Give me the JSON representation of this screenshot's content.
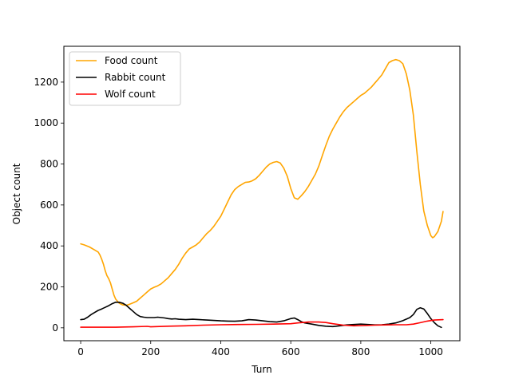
{
  "chart_data": {
    "type": "line",
    "xlabel": "Turn",
    "ylabel": "Object count",
    "xlim": [
      -48,
      1083
    ],
    "ylim": [
      -63,
      1375
    ],
    "x_ticks": [
      0,
      200,
      400,
      600,
      800,
      1000
    ],
    "y_ticks": [
      0,
      200,
      400,
      600,
      800,
      1000,
      1200
    ],
    "grid": false,
    "legend_position": "upper left",
    "series": [
      {
        "name": "Food count",
        "color": "#ffa500",
        "points": [
          [
            0,
            410
          ],
          [
            10,
            405
          ],
          [
            25,
            395
          ],
          [
            40,
            380
          ],
          [
            50,
            370
          ],
          [
            55,
            355
          ],
          [
            60,
            335
          ],
          [
            65,
            310
          ],
          [
            70,
            280
          ],
          [
            75,
            255
          ],
          [
            80,
            240
          ],
          [
            85,
            220
          ],
          [
            90,
            190
          ],
          [
            95,
            160
          ],
          [
            100,
            140
          ],
          [
            110,
            120
          ],
          [
            120,
            112
          ],
          [
            130,
            110
          ],
          [
            140,
            115
          ],
          [
            150,
            122
          ],
          [
            160,
            130
          ],
          [
            170,
            145
          ],
          [
            180,
            160
          ],
          [
            190,
            175
          ],
          [
            200,
            190
          ],
          [
            210,
            198
          ],
          [
            220,
            205
          ],
          [
            230,
            215
          ],
          [
            240,
            230
          ],
          [
            250,
            245
          ],
          [
            260,
            265
          ],
          [
            270,
            285
          ],
          [
            280,
            310
          ],
          [
            290,
            340
          ],
          [
            300,
            365
          ],
          [
            310,
            385
          ],
          [
            320,
            395
          ],
          [
            330,
            405
          ],
          [
            340,
            420
          ],
          [
            350,
            440
          ],
          [
            360,
            460
          ],
          [
            370,
            475
          ],
          [
            380,
            495
          ],
          [
            390,
            520
          ],
          [
            400,
            545
          ],
          [
            410,
            580
          ],
          [
            420,
            615
          ],
          [
            430,
            650
          ],
          [
            440,
            675
          ],
          [
            450,
            690
          ],
          [
            460,
            700
          ],
          [
            470,
            710
          ],
          [
            480,
            712
          ],
          [
            490,
            718
          ],
          [
            500,
            728
          ],
          [
            510,
            745
          ],
          [
            520,
            765
          ],
          [
            530,
            785
          ],
          [
            540,
            800
          ],
          [
            550,
            808
          ],
          [
            560,
            812
          ],
          [
            570,
            805
          ],
          [
            580,
            780
          ],
          [
            590,
            740
          ],
          [
            600,
            680
          ],
          [
            610,
            635
          ],
          [
            620,
            628
          ],
          [
            630,
            645
          ],
          [
            640,
            665
          ],
          [
            650,
            690
          ],
          [
            660,
            720
          ],
          [
            670,
            750
          ],
          [
            680,
            790
          ],
          [
            690,
            840
          ],
          [
            700,
            890
          ],
          [
            710,
            935
          ],
          [
            720,
            970
          ],
          [
            730,
            1000
          ],
          [
            740,
            1030
          ],
          [
            750,
            1055
          ],
          [
            760,
            1075
          ],
          [
            770,
            1090
          ],
          [
            780,
            1105
          ],
          [
            790,
            1120
          ],
          [
            800,
            1135
          ],
          [
            810,
            1145
          ],
          [
            820,
            1160
          ],
          [
            830,
            1175
          ],
          [
            840,
            1195
          ],
          [
            850,
            1215
          ],
          [
            860,
            1235
          ],
          [
            870,
            1265
          ],
          [
            880,
            1295
          ],
          [
            890,
            1305
          ],
          [
            900,
            1310
          ],
          [
            910,
            1305
          ],
          [
            920,
            1290
          ],
          [
            930,
            1240
          ],
          [
            940,
            1160
          ],
          [
            950,
            1040
          ],
          [
            960,
            860
          ],
          [
            970,
            700
          ],
          [
            980,
            570
          ],
          [
            990,
            500
          ],
          [
            1000,
            450
          ],
          [
            1005,
            440
          ],
          [
            1010,
            445
          ],
          [
            1020,
            470
          ],
          [
            1030,
            520
          ],
          [
            1035,
            568
          ]
        ]
      },
      {
        "name": "Rabbit count",
        "color": "#000000",
        "points": [
          [
            0,
            40
          ],
          [
            10,
            42
          ],
          [
            20,
            52
          ],
          [
            30,
            65
          ],
          [
            40,
            75
          ],
          [
            50,
            85
          ],
          [
            60,
            92
          ],
          [
            70,
            100
          ],
          [
            80,
            108
          ],
          [
            90,
            118
          ],
          [
            100,
            125
          ],
          [
            110,
            125
          ],
          [
            120,
            120
          ],
          [
            130,
            110
          ],
          [
            140,
            95
          ],
          [
            150,
            80
          ],
          [
            160,
            65
          ],
          [
            170,
            55
          ],
          [
            180,
            52
          ],
          [
            190,
            50
          ],
          [
            200,
            50
          ],
          [
            210,
            50
          ],
          [
            220,
            52
          ],
          [
            230,
            50
          ],
          [
            240,
            48
          ],
          [
            250,
            45
          ],
          [
            260,
            43
          ],
          [
            270,
            44
          ],
          [
            280,
            42
          ],
          [
            300,
            40
          ],
          [
            320,
            42
          ],
          [
            340,
            40
          ],
          [
            360,
            38
          ],
          [
            380,
            36
          ],
          [
            400,
            34
          ],
          [
            420,
            33
          ],
          [
            440,
            32
          ],
          [
            460,
            34
          ],
          [
            480,
            40
          ],
          [
            500,
            38
          ],
          [
            520,
            34
          ],
          [
            540,
            30
          ],
          [
            560,
            28
          ],
          [
            580,
            34
          ],
          [
            600,
            45
          ],
          [
            610,
            48
          ],
          [
            620,
            40
          ],
          [
            630,
            30
          ],
          [
            640,
            24
          ],
          [
            660,
            18
          ],
          [
            680,
            12
          ],
          [
            700,
            8
          ],
          [
            720,
            6
          ],
          [
            740,
            10
          ],
          [
            760,
            14
          ],
          [
            780,
            16
          ],
          [
            800,
            18
          ],
          [
            820,
            16
          ],
          [
            840,
            14
          ],
          [
            860,
            15
          ],
          [
            880,
            18
          ],
          [
            900,
            24
          ],
          [
            920,
            35
          ],
          [
            940,
            50
          ],
          [
            950,
            65
          ],
          [
            960,
            90
          ],
          [
            970,
            98
          ],
          [
            980,
            92
          ],
          [
            990,
            70
          ],
          [
            1000,
            45
          ],
          [
            1010,
            25
          ],
          [
            1020,
            10
          ],
          [
            1030,
            2
          ]
        ]
      },
      {
        "name": "Wolf count",
        "color": "#ff0000",
        "points": [
          [
            0,
            3
          ],
          [
            50,
            3
          ],
          [
            100,
            3
          ],
          [
            150,
            5
          ],
          [
            190,
            7
          ],
          [
            200,
            5
          ],
          [
            250,
            8
          ],
          [
            300,
            10
          ],
          [
            350,
            13
          ],
          [
            400,
            15
          ],
          [
            450,
            16
          ],
          [
            500,
            17
          ],
          [
            550,
            18
          ],
          [
            600,
            20
          ],
          [
            620,
            24
          ],
          [
            650,
            28
          ],
          [
            680,
            28
          ],
          [
            700,
            26
          ],
          [
            720,
            20
          ],
          [
            750,
            13
          ],
          [
            780,
            10
          ],
          [
            810,
            11
          ],
          [
            840,
            13
          ],
          [
            870,
            14
          ],
          [
            900,
            15
          ],
          [
            930,
            15
          ],
          [
            950,
            18
          ],
          [
            970,
            25
          ],
          [
            990,
            33
          ],
          [
            1010,
            38
          ],
          [
            1035,
            40
          ]
        ]
      }
    ]
  }
}
